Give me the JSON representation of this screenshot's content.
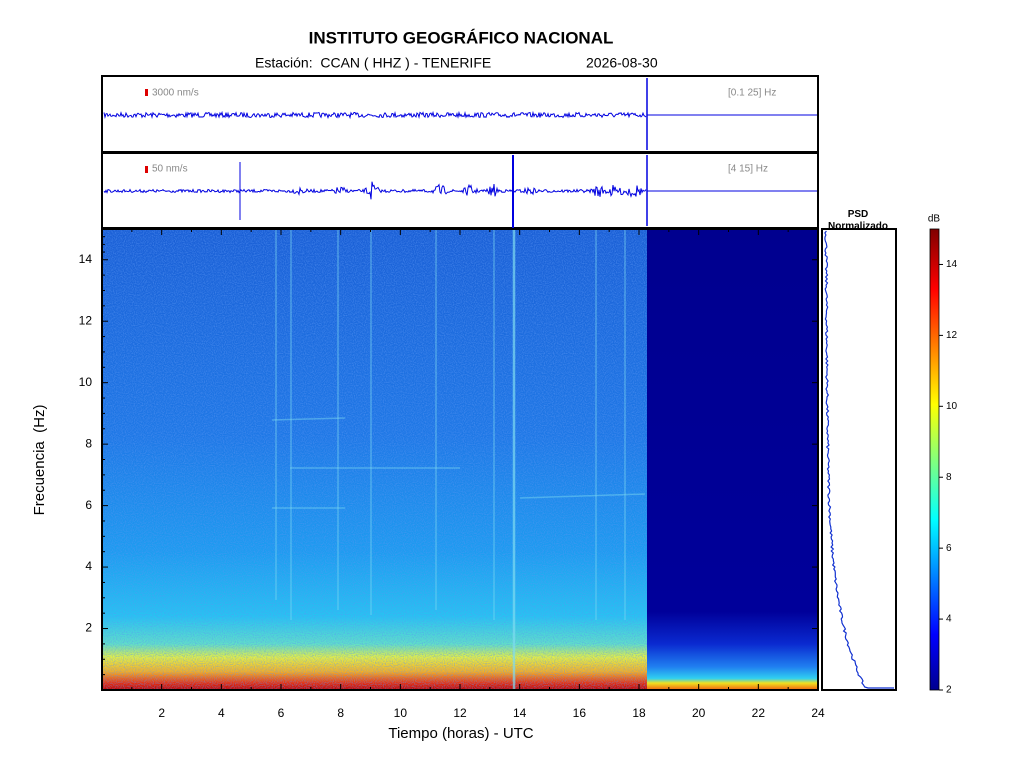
{
  "chart_data": {
    "type": "spectrogram",
    "title": "INSTITUTO GEOGRÁFICO NACIONAL",
    "station": "Estación:  CCAN ( HHZ ) - TENERIFE",
    "date": "2026-08-30",
    "traces": [
      {
        "scale": "3000 nm/s",
        "band": "[0.1 25] Hz"
      },
      {
        "scale": "50 nm/s",
        "band": "[4 15] Hz"
      }
    ],
    "xlabel": "Tiempo (horas) - UTC",
    "ylabel": "Frecuencia  (Hz)",
    "xlim": [
      0,
      24
    ],
    "xticks": [
      2,
      4,
      6,
      8,
      10,
      12,
      14,
      16,
      18,
      20,
      22,
      24
    ],
    "ylim": [
      0,
      15
    ],
    "yticks": [
      2,
      4,
      6,
      8,
      10,
      12,
      14
    ],
    "psd_title": "PSD\nNormalizado",
    "colorbar": {
      "label": "dB",
      "lim": [
        2,
        15
      ],
      "ticks": [
        2,
        4,
        6,
        8,
        10,
        12,
        14
      ]
    }
  }
}
